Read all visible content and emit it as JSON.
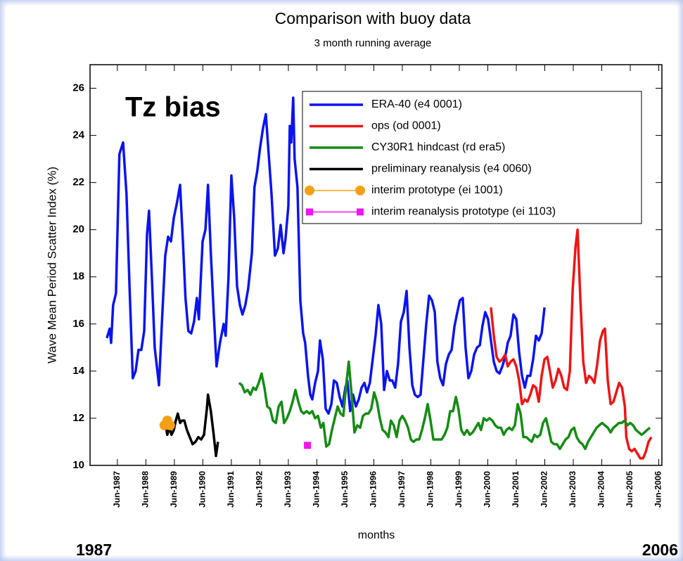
{
  "chart_data": {
    "type": "line",
    "title": "Comparison with buoy data",
    "subtitle": "3 month running average",
    "y_label": "Wave Mean Period Scatter Index (%)",
    "x_label": "months",
    "annotations": [
      "Tz bias",
      "1987",
      "2006"
    ],
    "xlim": [
      1986.46,
      2006.53
    ],
    "ylim": [
      10,
      27
    ],
    "yticks": [
      10,
      12,
      14,
      16,
      18,
      20,
      22,
      24,
      26
    ],
    "xticks": [
      {
        "value": 1987.42,
        "label": "Jun-1987"
      },
      {
        "value": 1988.42,
        "label": "Jun-1988"
      },
      {
        "value": 1989.42,
        "label": "Jun-1989"
      },
      {
        "value": 1990.42,
        "label": "Jun-1990"
      },
      {
        "value": 1991.42,
        "label": "Jun-1991"
      },
      {
        "value": 1992.42,
        "label": "Jun-1992"
      },
      {
        "value": 1993.42,
        "label": "Jun-1993"
      },
      {
        "value": 1994.42,
        "label": "Jun-1994"
      },
      {
        "value": 1995.42,
        "label": "Jun-1995"
      },
      {
        "value": 1996.42,
        "label": "Jun-1996"
      },
      {
        "value": 1997.42,
        "label": "Jun-1997"
      },
      {
        "value": 1998.42,
        "label": "Jun-1998"
      },
      {
        "value": 1999.42,
        "label": "Jun-1999"
      },
      {
        "value": 2000.42,
        "label": "Jun-2000"
      },
      {
        "value": 2001.42,
        "label": "Jun-2001"
      },
      {
        "value": 2002.42,
        "label": "Jun-2002"
      },
      {
        "value": 2003.42,
        "label": "Jun-2003"
      },
      {
        "value": 2004.42,
        "label": "Jun-2004"
      },
      {
        "value": 2005.42,
        "label": "Jun-2005"
      },
      {
        "value": 2006.42,
        "label": "Jun-2006"
      }
    ],
    "legend": "upper right",
    "series": [
      {
        "name": "ERA-40 (e4 0001)",
        "color": "#0a14f0",
        "x": [
          1987.05,
          1987.15,
          1987.2,
          1987.27,
          1987.37,
          1987.49,
          1987.62,
          1987.74,
          1987.84,
          1987.96,
          1988.06,
          1988.16,
          1988.26,
          1988.36,
          1988.46,
          1988.53,
          1988.63,
          1988.73,
          1988.88,
          1988.98,
          1989.1,
          1989.2,
          1989.3,
          1989.4,
          1989.52,
          1989.62,
          1989.72,
          1989.81,
          1989.91,
          1990.01,
          1990.11,
          1990.21,
          1990.28,
          1990.41,
          1990.51,
          1990.6,
          1990.7,
          1990.8,
          1990.9,
          1991.02,
          1991.15,
          1991.22,
          1991.32,
          1991.42,
          1991.52,
          1991.62,
          1991.72,
          1991.81,
          1991.91,
          1992.01,
          1992.14,
          1992.23,
          1992.33,
          1992.43,
          1992.53,
          1992.63,
          1992.73,
          1992.83,
          1992.95,
          1993.05,
          1993.15,
          1993.25,
          1993.32,
          1993.42,
          1993.47,
          1993.52,
          1993.59,
          1993.64,
          1993.74,
          1993.84,
          1993.94,
          1994.01,
          1994.11,
          1994.19,
          1994.26,
          1994.36,
          1994.46,
          1994.53,
          1994.63,
          1994.73,
          1994.83,
          1994.93,
          1995.02,
          1995.12,
          1995.22,
          1995.32,
          1995.42,
          1995.49,
          1995.59,
          1995.69,
          1995.79,
          1995.89,
          1995.99,
          1996.09,
          1996.18,
          1996.28,
          1996.38,
          1996.48,
          1996.58,
          1996.68,
          1996.78,
          1996.88,
          1996.98,
          1997.07,
          1997.17,
          1997.27,
          1997.37,
          1997.47,
          1997.57,
          1997.67,
          1997.77,
          1997.86,
          1997.96,
          1998.06,
          1998.16,
          1998.26,
          1998.36,
          1998.46,
          1998.56,
          1998.65,
          1998.75,
          1998.85,
          1998.95,
          1999.05,
          1999.15,
          1999.25,
          1999.35,
          1999.44,
          1999.54,
          1999.64,
          1999.74,
          1999.84,
          1999.94,
          2000.04,
          2000.14,
          2000.23,
          2000.33,
          2000.43,
          2000.53,
          2000.63,
          2000.73,
          2000.83,
          2000.93,
          2001.03,
          2001.12,
          2001.22,
          2001.32,
          2001.42,
          2001.52,
          2001.62,
          2001.72,
          2001.81,
          2001.91,
          2002.01,
          2002.11,
          2002.21,
          2002.31,
          2002.41
        ],
        "values": [
          15.4,
          15.8,
          15.2,
          16.8,
          17.3,
          23.2,
          23.7,
          21.5,
          17.8,
          13.7,
          14.0,
          14.9,
          14.9,
          15.7,
          19.8,
          20.8,
          18.0,
          15.0,
          13.4,
          16.0,
          18.9,
          19.7,
          19.5,
          20.5,
          21.2,
          21.9,
          19.5,
          17.1,
          15.7,
          15.6,
          16.1,
          17.1,
          16.2,
          19.5,
          20.0,
          21.9,
          19.0,
          16.5,
          14.2,
          15.2,
          16.0,
          15.5,
          18.0,
          22.3,
          20.5,
          17.6,
          16.8,
          16.4,
          16.8,
          17.5,
          19.0,
          21.8,
          22.5,
          23.5,
          24.3,
          24.9,
          23.2,
          21.5,
          18.9,
          19.2,
          20.2,
          19.0,
          19.6,
          21.0,
          24.4,
          23.7,
          25.6,
          23.0,
          21.8,
          17.0,
          15.6,
          15.2,
          13.8,
          13.0,
          12.8,
          13.5,
          14.0,
          15.3,
          14.5,
          12.4,
          12.2,
          12.6,
          13.6,
          13.5,
          12.9,
          12.5,
          13.3,
          13.6,
          12.3,
          13.0,
          12.5,
          12.8,
          13.3,
          13.5,
          13.1,
          13.5,
          14.5,
          15.5,
          16.8,
          16.0,
          13.2,
          14.0,
          13.6,
          13.6,
          13.3,
          14.3,
          16.1,
          16.5,
          17.4,
          15.0,
          13.4,
          13.0,
          12.9,
          13.0,
          14.5,
          16.0,
          17.2,
          17.0,
          16.5,
          14.4,
          13.7,
          13.4,
          14.3,
          14.7,
          14.9,
          15.9,
          16.5,
          17.0,
          17.1,
          15.0,
          13.7,
          14.0,
          14.7,
          15.0,
          15.1,
          15.9,
          16.5,
          16.2,
          15.3,
          14.4,
          14.0,
          13.9,
          14.2,
          14.6,
          15.2,
          15.5,
          16.4,
          16.2,
          14.8,
          13.8,
          13.3,
          13.8,
          13.8,
          14.5,
          15.5,
          15.3,
          15.6,
          16.7
        ]
      },
      {
        "name": "ops (od 0001)",
        "color": "#f01414",
        "x": [
          2000.53,
          2000.63,
          2000.73,
          2000.83,
          2000.93,
          2001.03,
          2001.12,
          2001.22,
          2001.32,
          2001.42,
          2001.52,
          2001.62,
          2001.72,
          2001.81,
          2001.91,
          2002.01,
          2002.11,
          2002.21,
          2002.31,
          2002.41,
          2002.51,
          2002.6,
          2002.7,
          2002.8,
          2002.9,
          2003.0,
          2003.1,
          2003.2,
          2003.3,
          2003.4,
          2003.5,
          2003.57,
          2003.67,
          2003.77,
          2003.87,
          2003.97,
          2004.06,
          2004.16,
          2004.26,
          2004.36,
          2004.46,
          2004.53,
          2004.63,
          2004.73,
          2004.83,
          2004.93,
          2005.03,
          2005.13,
          2005.23,
          2005.28,
          2005.38,
          2005.47,
          2005.57,
          2005.67,
          2005.77,
          2005.87,
          2005.97,
          2006.06,
          2006.16
        ],
        "values": [
          16.7,
          15.5,
          14.6,
          14.4,
          14.5,
          14.7,
          14.2,
          14.4,
          14.5,
          14.2,
          13.6,
          12.6,
          12.8,
          12.7,
          13.0,
          13.4,
          13.3,
          12.7,
          13.8,
          14.5,
          14.6,
          14.0,
          13.3,
          13.6,
          14.1,
          13.8,
          13.3,
          13.2,
          14.0,
          17.5,
          19.3,
          20.0,
          17.0,
          14.4,
          13.5,
          13.8,
          13.7,
          13.5,
          14.3,
          15.3,
          15.7,
          15.8,
          13.6,
          12.6,
          12.7,
          13.1,
          13.5,
          13.3,
          12.5,
          11.2,
          10.7,
          10.6,
          10.7,
          10.5,
          10.3,
          10.3,
          10.6,
          11.0,
          11.2
        ]
      },
      {
        "name": "CY30R1 hindcast (rd era5)",
        "color": "#148c14",
        "x": [
          1991.69,
          1991.79,
          1991.89,
          1991.99,
          1992.09,
          1992.19,
          1992.28,
          1992.38,
          1992.48,
          1992.58,
          1992.68,
          1992.78,
          1992.88,
          1992.98,
          1993.08,
          1993.18,
          1993.27,
          1993.37,
          1993.47,
          1993.57,
          1993.67,
          1993.77,
          1993.87,
          1993.96,
          1994.06,
          1994.16,
          1994.26,
          1994.36,
          1994.46,
          1994.56,
          1994.65,
          1994.75,
          1994.85,
          1994.95,
          1995.05,
          1995.15,
          1995.25,
          1995.35,
          1995.44,
          1995.54,
          1995.64,
          1995.74,
          1995.84,
          1995.94,
          1996.04,
          1996.14,
          1996.23,
          1996.33,
          1996.43,
          1996.53,
          1996.63,
          1996.73,
          1996.83,
          1996.93,
          1997.02,
          1997.12,
          1997.22,
          1997.32,
          1997.42,
          1997.52,
          1997.62,
          1997.72,
          1997.81,
          1997.91,
          1998.01,
          1998.11,
          1998.21,
          1998.31,
          1998.41,
          1998.51,
          1998.6,
          1998.7,
          1998.8,
          1998.9,
          1999.0,
          1999.1,
          1999.2,
          1999.3,
          1999.39,
          1999.49,
          1999.59,
          1999.69,
          1999.79,
          1999.89,
          1999.99,
          2000.09,
          2000.18,
          2000.28,
          2000.38,
          2000.48,
          2000.58,
          2000.68,
          2000.78,
          2000.88,
          2000.98,
          2001.07,
          2001.17,
          2001.27,
          2001.37,
          2001.47,
          2001.57,
          2001.67,
          2001.77,
          2001.86,
          2001.96,
          2002.06,
          2002.16,
          2002.26,
          2002.36,
          2002.46,
          2002.56,
          2002.65,
          2002.75,
          2002.85,
          2002.95,
          2003.05,
          2003.15,
          2003.25,
          2003.35,
          2003.45,
          2003.54,
          2003.64,
          2003.74,
          2003.84,
          2003.94,
          2004.04,
          2004.14,
          2004.24,
          2004.33,
          2004.43,
          2004.53,
          2004.63,
          2004.73,
          2004.83,
          2004.93,
          2005.02,
          2005.12,
          2005.22,
          2005.32,
          2005.42,
          2005.52,
          2005.62,
          2005.72,
          2005.82,
          2005.92,
          2006.01,
          2006.11
        ],
        "values": [
          13.5,
          13.4,
          13.1,
          13.2,
          13.0,
          13.3,
          13.2,
          13.5,
          13.9,
          13.3,
          12.5,
          12.4,
          11.9,
          11.8,
          12.5,
          12.7,
          11.8,
          12.0,
          12.3,
          12.7,
          13.2,
          12.7,
          12.3,
          12.2,
          12.3,
          12.2,
          12.3,
          12.0,
          12.1,
          11.6,
          11.8,
          10.8,
          10.9,
          11.5,
          12.0,
          12.5,
          12.2,
          12.1,
          13.3,
          14.4,
          13.0,
          11.4,
          11.7,
          11.6,
          12.1,
          12.2,
          12.2,
          12.4,
          13.1,
          12.7,
          12.0,
          11.5,
          11.4,
          11.2,
          11.9,
          11.7,
          11.2,
          11.9,
          12.1,
          11.9,
          11.6,
          11.1,
          11.0,
          11.1,
          11.1,
          11.5,
          12.0,
          12.6,
          11.9,
          11.1,
          11.1,
          11.1,
          11.1,
          11.3,
          11.6,
          12.3,
          12.3,
          12.9,
          12.4,
          11.5,
          11.3,
          11.5,
          11.3,
          11.4,
          11.6,
          11.8,
          11.5,
          12.0,
          11.9,
          12.0,
          11.9,
          11.7,
          11.6,
          11.6,
          11.3,
          11.5,
          11.6,
          11.5,
          11.7,
          12.6,
          12.2,
          11.2,
          11.2,
          11.1,
          11.0,
          11.3,
          11.2,
          11.3,
          11.8,
          12.0,
          11.5,
          11.0,
          10.9,
          10.9,
          10.7,
          10.9,
          11.1,
          11.2,
          11.5,
          11.6,
          11.2,
          11.0,
          10.9,
          10.7,
          11.0,
          11.2,
          11.4,
          11.6,
          11.7,
          11.8,
          11.7,
          11.6,
          11.4,
          11.6,
          11.7,
          11.8,
          11.8,
          11.9,
          11.7,
          11.8,
          11.7,
          11.5,
          11.4,
          11.3,
          11.4,
          11.5,
          11.6
        ]
      },
      {
        "name": "preliminary reanalysis (e4 0060)",
        "color": "#000000",
        "x": [
          1989.03,
          1989.1,
          1989.17,
          1989.25,
          1989.32,
          1989.4,
          1989.47,
          1989.54,
          1989.62,
          1989.69,
          1989.77,
          1989.86,
          1989.96,
          1990.06,
          1990.16,
          1990.26,
          1990.36,
          1990.46,
          1990.56,
          1990.6,
          1990.7,
          1990.8,
          1990.88,
          1990.95
        ],
        "values": [
          11.5,
          11.8,
          11.3,
          11.6,
          11.3,
          11.5,
          11.9,
          12.2,
          11.8,
          11.9,
          11.9,
          11.5,
          11.2,
          10.9,
          11.0,
          11.2,
          11.1,
          11.3,
          12.4,
          13.0,
          12.3,
          11.3,
          10.4,
          11.0
        ]
      },
      {
        "name": "interim prototype (ei 1001)",
        "color": "#f5a014",
        "marker": "circle",
        "x": [
          1989.07,
          1989.17,
          1989.27
        ],
        "values": [
          11.7,
          11.9,
          11.7
        ]
      },
      {
        "name": "interim reanalysis prototype (ei 1103)",
        "color": "#f014f0",
        "marker": "square",
        "x": [
          1994.09
        ],
        "values": [
          10.85
        ]
      }
    ]
  }
}
